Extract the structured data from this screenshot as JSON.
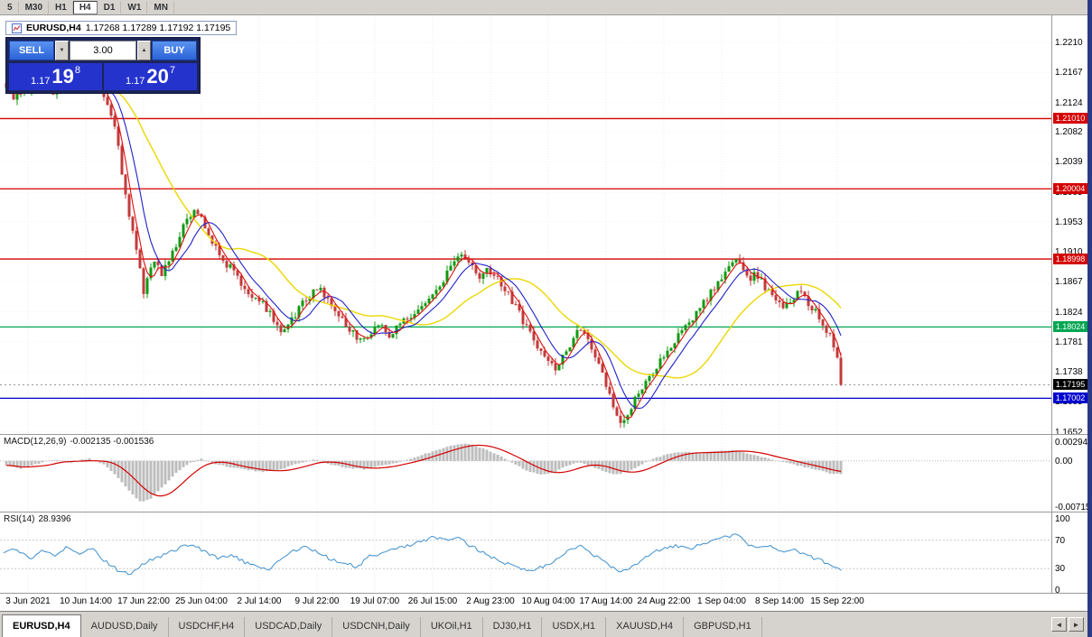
{
  "colors": {
    "chrome": "#d6d3ce",
    "grid": "#ebebeb",
    "candle_up": "#119a11",
    "candle_down": "#c23b3b",
    "ma_fast": "#e01010",
    "ma_mid": "#2020cc",
    "ma_slow": "#ecd800",
    "macd_hist": "#bdbdbd",
    "macd_signal": "#d40000",
    "rsi_line": "#3c8fd0",
    "trade_panel_bg": "#1b2559",
    "trade_button": "#2e6adf",
    "trade_price_bg": "#2533cd",
    "frame": "#2b3a85"
  },
  "toolbar": {
    "buttons": [
      {
        "label": "5",
        "active": false
      },
      {
        "label": "M30",
        "active": false
      },
      {
        "label": "H1",
        "active": false
      },
      {
        "label": "H4",
        "active": true
      },
      {
        "label": "D1",
        "active": false
      },
      {
        "label": "W1",
        "active": false
      },
      {
        "label": "MN",
        "active": false
      }
    ]
  },
  "chart_header": {
    "symbol": "EURUSD,H4",
    "quotes": "1.17268 1.17289 1.17192 1.17195"
  },
  "trade_panel": {
    "sell_label": "SELL",
    "buy_label": "BUY",
    "volume": "3.00",
    "sell_price": {
      "prefix": "1.17",
      "big": "19",
      "sup": "8"
    },
    "buy_price": {
      "prefix": "1.17",
      "big": "20",
      "sup": "7"
    }
  },
  "indicators": {
    "macd": {
      "title": "MACD(12,26,9)",
      "values": "-0.002135 -0.001536",
      "scale": [
        "0.002947",
        "0.00",
        "-0.00715"
      ]
    },
    "rsi": {
      "title": "RSI(14)",
      "value": "28.9396",
      "scale": [
        "100",
        "70",
        "30",
        "0"
      ]
    }
  },
  "tabs": {
    "items": [
      {
        "label": "EURUSD,H4",
        "active": true
      },
      {
        "label": "AUDUSD,Daily",
        "active": false
      },
      {
        "label": "USDCHF,H4",
        "active": false
      },
      {
        "label": "USDCAD,Daily",
        "active": false
      },
      {
        "label": "USDCNH,Daily",
        "active": false
      },
      {
        "label": "UKOil,H1",
        "active": false
      },
      {
        "label": "DJ30,H1",
        "active": false
      },
      {
        "label": "USDX,H1",
        "active": false
      },
      {
        "label": "XAUUSD,H4",
        "active": false
      },
      {
        "label": "GBPUSD,H1",
        "active": false
      }
    ],
    "scroll_icons": {
      "left": "◄",
      "right": "►"
    }
  },
  "chart_data": {
    "type": "candlestick",
    "symbol": "EURUSD",
    "timeframe": "H4",
    "last_quote": {
      "open": 1.17268,
      "high": 1.17289,
      "low": 1.17192,
      "close": 1.17195
    },
    "ylim": [
      1.1649,
      1.2249
    ],
    "price_ticks": [
      "1.2210",
      "1.2167",
      "1.2124",
      "1.2082",
      "1.2039",
      "1.1995",
      "1.1953",
      "1.1910",
      "1.1867",
      "1.1824",
      "1.1781",
      "1.1738",
      "1.1695",
      "1.1652"
    ],
    "time_ticks": [
      "3 Jun 2021",
      "10 Jun 14:00",
      "17 Jun 22:00",
      "25 Jun 04:00",
      "2 Jul 14:00",
      "9 Jul 22:00",
      "19 Jul 07:00",
      "26 Jul 15:00",
      "2 Aug 23:00",
      "10 Aug 04:00",
      "17 Aug 14:00",
      "24 Aug 22:00",
      "1 Sep 04:00",
      "8 Sep 14:00",
      "15 Sep 22:00"
    ],
    "levels": [
      {
        "price": 1.2101,
        "label": "1.21010",
        "color": "#d40000"
      },
      {
        "price": 1.20004,
        "label": "1.20004",
        "color": "#d40000"
      },
      {
        "price": 1.18998,
        "label": "1.18998",
        "color": "#d40000"
      },
      {
        "price": 1.18024,
        "label": "1.18024",
        "color": "#00a651"
      },
      {
        "price": 1.17002,
        "label": "1.17002",
        "color": "#0000d0"
      }
    ],
    "current_price": {
      "price": 1.17195,
      "label": "1.17195",
      "color": "#000000"
    },
    "price_path": [
      [
        0.0,
        1.2152
      ],
      [
        0.011,
        1.2128
      ],
      [
        0.022,
        1.2145
      ],
      [
        0.043,
        1.215
      ],
      [
        0.059,
        1.2138
      ],
      [
        0.075,
        1.215
      ],
      [
        0.091,
        1.2142
      ],
      [
        0.102,
        1.2155
      ],
      [
        0.113,
        1.2148
      ],
      [
        0.12,
        1.213
      ],
      [
        0.129,
        1.211
      ],
      [
        0.138,
        1.206
      ],
      [
        0.145,
        1.2
      ],
      [
        0.153,
        1.195
      ],
      [
        0.161,
        1.19
      ],
      [
        0.169,
        1.1848
      ],
      [
        0.175,
        1.1885
      ],
      [
        0.183,
        1.19
      ],
      [
        0.19,
        1.1875
      ],
      [
        0.199,
        1.19
      ],
      [
        0.208,
        1.1925
      ],
      [
        0.217,
        1.195
      ],
      [
        0.226,
        1.1968
      ],
      [
        0.237,
        1.196
      ],
      [
        0.247,
        1.193
      ],
      [
        0.258,
        1.1905
      ],
      [
        0.271,
        1.1888
      ],
      [
        0.282,
        1.187
      ],
      [
        0.296,
        1.185
      ],
      [
        0.309,
        1.1838
      ],
      [
        0.32,
        1.1818
      ],
      [
        0.331,
        1.1795
      ],
      [
        0.342,
        1.1808
      ],
      [
        0.355,
        1.1832
      ],
      [
        0.368,
        1.1852
      ],
      [
        0.378,
        1.1858
      ],
      [
        0.389,
        1.184
      ],
      [
        0.4,
        1.1822
      ],
      [
        0.411,
        1.1805
      ],
      [
        0.421,
        1.1788
      ],
      [
        0.43,
        1.178
      ],
      [
        0.441,
        1.1798
      ],
      [
        0.449,
        1.181
      ],
      [
        0.46,
        1.179
      ],
      [
        0.471,
        1.1802
      ],
      [
        0.484,
        1.1815
      ],
      [
        0.497,
        1.1825
      ],
      [
        0.508,
        1.1838
      ],
      [
        0.518,
        1.1855
      ],
      [
        0.529,
        1.1878
      ],
      [
        0.54,
        1.1898
      ],
      [
        0.548,
        1.1905
      ],
      [
        0.559,
        1.1888
      ],
      [
        0.57,
        1.1872
      ],
      [
        0.578,
        1.1885
      ],
      [
        0.587,
        1.1876
      ],
      [
        0.598,
        1.1858
      ],
      [
        0.609,
        1.1838
      ],
      [
        0.619,
        1.1815
      ],
      [
        0.63,
        1.1792
      ],
      [
        0.641,
        1.1768
      ],
      [
        0.652,
        1.1748
      ],
      [
        0.66,
        1.1742
      ],
      [
        0.669,
        1.176
      ],
      [
        0.68,
        1.1785
      ],
      [
        0.688,
        1.18
      ],
      [
        0.697,
        1.179
      ],
      [
        0.705,
        1.1768
      ],
      [
        0.714,
        1.1745
      ],
      [
        0.72,
        1.172
      ],
      [
        0.727,
        1.169
      ],
      [
        0.733,
        1.1672
      ],
      [
        0.74,
        1.1665
      ],
      [
        0.746,
        1.168
      ],
      [
        0.755,
        1.17
      ],
      [
        0.766,
        1.172
      ],
      [
        0.777,
        1.1742
      ],
      [
        0.79,
        1.1765
      ],
      [
        0.804,
        1.1785
      ],
      [
        0.817,
        1.1805
      ],
      [
        0.83,
        1.1828
      ],
      [
        0.843,
        1.1848
      ],
      [
        0.856,
        1.187
      ],
      [
        0.867,
        1.1892
      ],
      [
        0.873,
        1.1902
      ],
      [
        0.882,
        1.1885
      ],
      [
        0.89,
        1.187
      ],
      [
        0.899,
        1.1878
      ],
      [
        0.909,
        1.186
      ],
      [
        0.919,
        1.1845
      ],
      [
        0.93,
        1.1832
      ],
      [
        0.941,
        1.1842
      ],
      [
        0.952,
        1.1852
      ],
      [
        0.96,
        1.1838
      ],
      [
        0.969,
        1.1825
      ],
      [
        0.977,
        1.1812
      ],
      [
        0.986,
        1.1792
      ],
      [
        0.995,
        1.1765
      ],
      [
        1.0,
        1.17195
      ]
    ],
    "macd": {
      "ylim": [
        -0.0078,
        0.004
      ],
      "points": [
        [
          0.0,
          -0.0006
        ],
        [
          0.02,
          -0.0012
        ],
        [
          0.04,
          -0.0004
        ],
        [
          0.06,
          0.0002
        ],
        [
          0.08,
          -0.0003
        ],
        [
          0.1,
          0.0004
        ],
        [
          0.12,
          -0.0006
        ],
        [
          0.135,
          -0.0025
        ],
        [
          0.15,
          -0.0048
        ],
        [
          0.163,
          -0.0064
        ],
        [
          0.175,
          -0.0058
        ],
        [
          0.19,
          -0.0038
        ],
        [
          0.205,
          -0.0018
        ],
        [
          0.22,
          -0.0004
        ],
        [
          0.235,
          0.0003
        ],
        [
          0.25,
          -0.0004
        ],
        [
          0.27,
          -0.001
        ],
        [
          0.29,
          -0.0014
        ],
        [
          0.31,
          -0.0017
        ],
        [
          0.33,
          -0.0013
        ],
        [
          0.35,
          -0.0004
        ],
        [
          0.37,
          0.0002
        ],
        [
          0.39,
          -0.0006
        ],
        [
          0.41,
          -0.0011
        ],
        [
          0.43,
          -0.0013
        ],
        [
          0.45,
          -0.0007
        ],
        [
          0.47,
          -0.0002
        ],
        [
          0.49,
          0.0006
        ],
        [
          0.51,
          0.0014
        ],
        [
          0.53,
          0.0022
        ],
        [
          0.55,
          0.0027
        ],
        [
          0.57,
          0.002
        ],
        [
          0.59,
          0.0008
        ],
        [
          0.61,
          -0.0006
        ],
        [
          0.625,
          -0.0016
        ],
        [
          0.64,
          -0.0021
        ],
        [
          0.655,
          -0.0018
        ],
        [
          0.67,
          -0.0008
        ],
        [
          0.685,
          -0.0002
        ],
        [
          0.7,
          -0.0008
        ],
        [
          0.715,
          -0.0016
        ],
        [
          0.73,
          -0.0021
        ],
        [
          0.745,
          -0.0016
        ],
        [
          0.76,
          -0.0006
        ],
        [
          0.775,
          0.0004
        ],
        [
          0.79,
          0.001
        ],
        [
          0.81,
          0.0014
        ],
        [
          0.83,
          0.0012
        ],
        [
          0.85,
          0.0015
        ],
        [
          0.87,
          0.0017
        ],
        [
          0.89,
          0.001
        ],
        [
          0.91,
          0.0004
        ],
        [
          0.93,
          -0.0002
        ],
        [
          0.95,
          -0.0008
        ],
        [
          0.97,
          -0.0014
        ],
        [
          0.985,
          -0.0019
        ],
        [
          1.0,
          -0.0021
        ]
      ]
    },
    "rsi": {
      "ylim": [
        0,
        100
      ],
      "guides": [
        70,
        30
      ],
      "points": [
        [
          0.0,
          50
        ],
        [
          0.02,
          58
        ],
        [
          0.035,
          44
        ],
        [
          0.05,
          56
        ],
        [
          0.065,
          48
        ],
        [
          0.08,
          60
        ],
        [
          0.095,
          52
        ],
        [
          0.11,
          58
        ],
        [
          0.125,
          40
        ],
        [
          0.14,
          28
        ],
        [
          0.155,
          22
        ],
        [
          0.17,
          38
        ],
        [
          0.185,
          44
        ],
        [
          0.2,
          52
        ],
        [
          0.215,
          60
        ],
        [
          0.23,
          64
        ],
        [
          0.245,
          52
        ],
        [
          0.26,
          45
        ],
        [
          0.275,
          50
        ],
        [
          0.29,
          40
        ],
        [
          0.305,
          33
        ],
        [
          0.32,
          30
        ],
        [
          0.335,
          45
        ],
        [
          0.35,
          56
        ],
        [
          0.365,
          60
        ],
        [
          0.38,
          52
        ],
        [
          0.395,
          42
        ],
        [
          0.41,
          38
        ],
        [
          0.425,
          33
        ],
        [
          0.44,
          48
        ],
        [
          0.455,
          52
        ],
        [
          0.47,
          57
        ],
        [
          0.485,
          62
        ],
        [
          0.5,
          68
        ],
        [
          0.515,
          74
        ],
        [
          0.53,
          70
        ],
        [
          0.545,
          73
        ],
        [
          0.56,
          62
        ],
        [
          0.575,
          52
        ],
        [
          0.59,
          44
        ],
        [
          0.605,
          36
        ],
        [
          0.62,
          30
        ],
        [
          0.635,
          28
        ],
        [
          0.65,
          35
        ],
        [
          0.665,
          45
        ],
        [
          0.68,
          58
        ],
        [
          0.69,
          62
        ],
        [
          0.705,
          50
        ],
        [
          0.72,
          38
        ],
        [
          0.733,
          28
        ],
        [
          0.746,
          26
        ],
        [
          0.76,
          40
        ],
        [
          0.775,
          52
        ],
        [
          0.79,
          58
        ],
        [
          0.805,
          62
        ],
        [
          0.82,
          58
        ],
        [
          0.835,
          64
        ],
        [
          0.85,
          70
        ],
        [
          0.865,
          75
        ],
        [
          0.875,
          79
        ],
        [
          0.885,
          68
        ],
        [
          0.9,
          58
        ],
        [
          0.915,
          63
        ],
        [
          0.93,
          52
        ],
        [
          0.945,
          58
        ],
        [
          0.96,
          48
        ],
        [
          0.975,
          42
        ],
        [
          0.988,
          34
        ],
        [
          1.0,
          28.94
        ]
      ]
    }
  }
}
